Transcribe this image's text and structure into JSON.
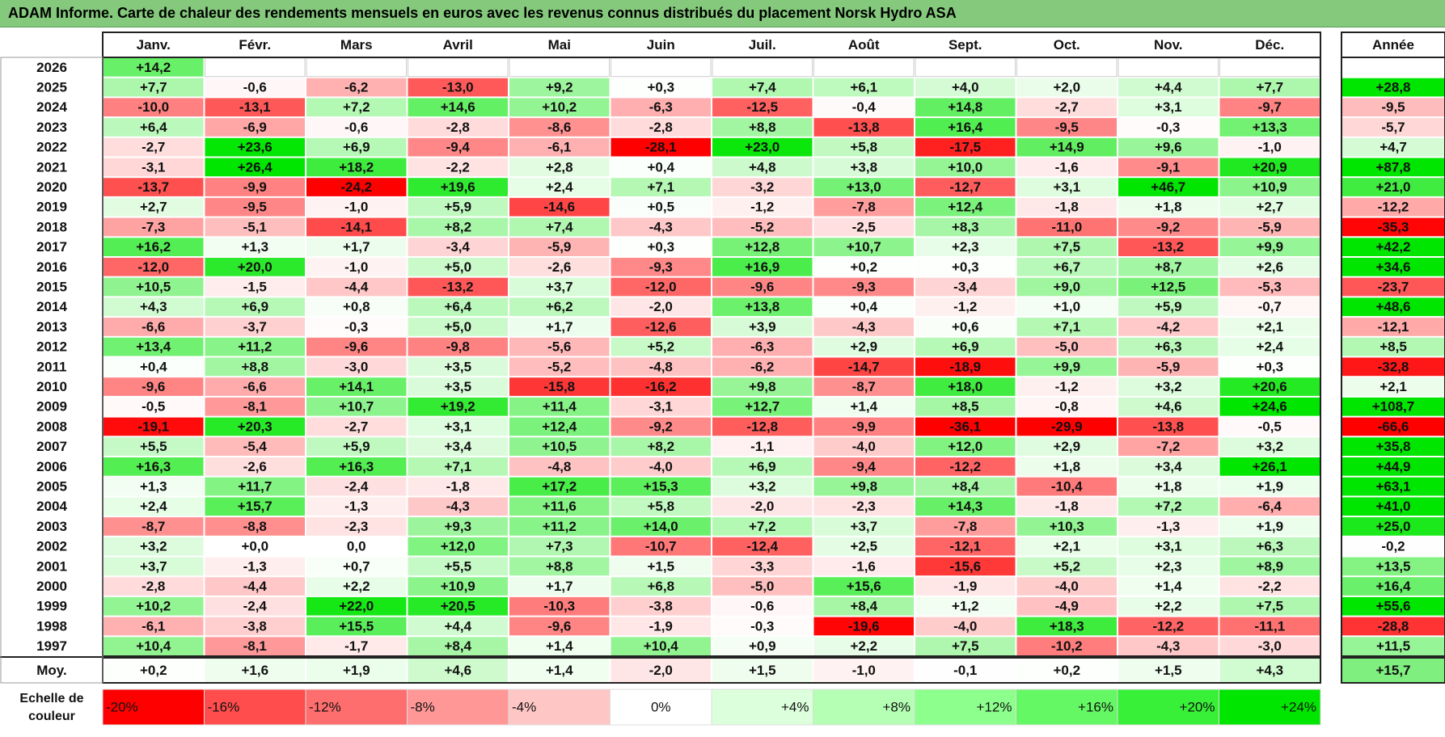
{
  "title": "ADAM Informe. Carte de chaleur des rendements mensuels en euros avec les revenus connus distribués du placement Norsk Hydro ASA",
  "chart_data": {
    "type": "heatmap",
    "columns": [
      "Janv.",
      "Févr.",
      "Mars",
      "Avril",
      "Mai",
      "Juin",
      "Juil.",
      "Août",
      "Sept.",
      "Oct.",
      "Nov.",
      "Déc."
    ],
    "year_column_label": "Année",
    "years": [
      "2026",
      "2025",
      "2024",
      "2023",
      "2022",
      "2021",
      "2020",
      "2019",
      "2018",
      "2017",
      "2016",
      "2015",
      "2014",
      "2013",
      "2012",
      "2011",
      "2010",
      "2009",
      "2008",
      "2007",
      "2006",
      "2005",
      "2004",
      "2003",
      "2002",
      "2001",
      "2000",
      "1999",
      "1998",
      "1997"
    ],
    "rows": [
      [
        "+14,2",
        "",
        "",
        "",
        "",
        "",
        "",
        "",
        "",
        "",
        "",
        ""
      ],
      [
        "+7,7",
        "-0,6",
        "-6,2",
        "-13,0",
        "+9,2",
        "+0,3",
        "+7,4",
        "+6,1",
        "+4,0",
        "+2,0",
        "+4,4",
        "+7,7"
      ],
      [
        "-10,0",
        "-13,1",
        "+7,2",
        "+14,6",
        "+10,2",
        "-6,3",
        "-12,5",
        "-0,4",
        "+14,8",
        "-2,7",
        "+3,1",
        "-9,7"
      ],
      [
        "+6,4",
        "-6,9",
        "-0,6",
        "-2,8",
        "-8,6",
        "-2,8",
        "+8,8",
        "-13,8",
        "+16,4",
        "-9,5",
        "-0,3",
        "+13,3"
      ],
      [
        "-2,7",
        "+23,6",
        "+6,9",
        "-9,4",
        "-6,1",
        "-28,1",
        "+23,0",
        "+5,8",
        "-17,5",
        "+14,9",
        "+9,6",
        "-1,0"
      ],
      [
        "-3,1",
        "+26,4",
        "+18,2",
        "-2,2",
        "+2,8",
        "+0,4",
        "+4,8",
        "+3,8",
        "+10,0",
        "-1,6",
        "-9,1",
        "+20,9"
      ],
      [
        "-13,7",
        "-9,9",
        "-24,2",
        "+19,6",
        "+2,4",
        "+7,1",
        "-3,2",
        "+13,0",
        "-12,7",
        "+3,1",
        "+46,7",
        "+10,9"
      ],
      [
        "+2,7",
        "-9,5",
        "-1,0",
        "+5,9",
        "-14,6",
        "+0,5",
        "-1,2",
        "-7,8",
        "+12,4",
        "-1,8",
        "+1,8",
        "+2,7"
      ],
      [
        "-7,3",
        "-5,1",
        "-14,1",
        "+8,2",
        "+7,4",
        "-4,3",
        "-5,2",
        "-2,5",
        "+8,3",
        "-11,0",
        "-9,2",
        "-5,9"
      ],
      [
        "+16,2",
        "+1,3",
        "+1,7",
        "-3,4",
        "-5,9",
        "+0,3",
        "+12,8",
        "+10,7",
        "+2,3",
        "+7,5",
        "-13,2",
        "+9,9"
      ],
      [
        "-12,0",
        "+20,0",
        "-1,0",
        "+5,0",
        "-2,6",
        "-9,3",
        "+16,9",
        "+0,2",
        "+0,3",
        "+6,7",
        "+8,7",
        "+2,6"
      ],
      [
        "+10,5",
        "-1,5",
        "-4,4",
        "-13,2",
        "+3,7",
        "-12,0",
        "-9,6",
        "-9,3",
        "-3,4",
        "+9,0",
        "+12,5",
        "-5,3"
      ],
      [
        "+4,3",
        "+6,9",
        "+0,8",
        "+6,4",
        "+6,2",
        "-2,0",
        "+13,8",
        "+0,4",
        "-1,2",
        "+1,0",
        "+5,9",
        "-0,7"
      ],
      [
        "-6,6",
        "-3,7",
        "-0,3",
        "+5,0",
        "+1,7",
        "-12,6",
        "+3,9",
        "-4,3",
        "+0,6",
        "+7,1",
        "-4,2",
        "+2,1"
      ],
      [
        "+13,4",
        "+11,2",
        "-9,6",
        "-9,8",
        "-5,6",
        "+5,2",
        "-6,3",
        "+2,9",
        "+6,9",
        "-5,0",
        "+6,3",
        "+2,4"
      ],
      [
        "+0,4",
        "+8,8",
        "-3,0",
        "+3,5",
        "-5,2",
        "-4,8",
        "-6,2",
        "-14,7",
        "-18,9",
        "+9,9",
        "-5,9",
        "+0,3"
      ],
      [
        "-9,6",
        "-6,6",
        "+14,1",
        "+3,5",
        "-15,8",
        "-16,2",
        "+9,8",
        "-8,7",
        "+18,0",
        "-1,2",
        "+3,2",
        "+20,6"
      ],
      [
        "-0,5",
        "-8,1",
        "+10,7",
        "+19,2",
        "+11,4",
        "-3,1",
        "+12,7",
        "+1,4",
        "+8,5",
        "-0,8",
        "+4,6",
        "+24,6"
      ],
      [
        "-19,1",
        "+20,3",
        "-2,7",
        "+3,1",
        "+12,4",
        "-9,2",
        "-12,8",
        "-9,9",
        "-36,1",
        "-29,9",
        "-13,8",
        "-0,5"
      ],
      [
        "+5,5",
        "-5,4",
        "+5,9",
        "+3,4",
        "+10,5",
        "+8,2",
        "-1,1",
        "-4,0",
        "+12,0",
        "+2,9",
        "-7,2",
        "+3,2"
      ],
      [
        "+16,3",
        "-2,6",
        "+16,3",
        "+7,1",
        "-4,8",
        "-4,0",
        "+6,9",
        "-9,4",
        "-12,2",
        "+1,8",
        "+3,4",
        "+26,1"
      ],
      [
        "+1,3",
        "+11,7",
        "-2,4",
        "-1,8",
        "+17,2",
        "+15,3",
        "+3,2",
        "+9,8",
        "+8,4",
        "-10,4",
        "+1,8",
        "+1,9"
      ],
      [
        "+2,4",
        "+15,7",
        "-1,3",
        "-4,3",
        "+11,6",
        "+5,8",
        "-2,0",
        "-2,3",
        "+14,3",
        "-1,8",
        "+7,2",
        "-6,4"
      ],
      [
        "-8,7",
        "-8,8",
        "-2,3",
        "+9,3",
        "+11,2",
        "+14,0",
        "+7,2",
        "+3,7",
        "-7,8",
        "+10,3",
        "-1,3",
        "+1,9"
      ],
      [
        "+3,2",
        "+0,0",
        "0,0",
        "+12,0",
        "+7,3",
        "-10,7",
        "-12,4",
        "+2,5",
        "-12,1",
        "+2,1",
        "+3,1",
        "+6,3"
      ],
      [
        "+3,7",
        "-1,3",
        "+0,7",
        "+5,5",
        "+8,8",
        "+1,5",
        "-3,3",
        "-1,6",
        "-15,6",
        "+5,2",
        "+2,3",
        "+8,9"
      ],
      [
        "-2,8",
        "-4,4",
        "+2,2",
        "+10,9",
        "+1,7",
        "+6,8",
        "-5,0",
        "+15,6",
        "-1,9",
        "-4,0",
        "+1,4",
        "-2,2"
      ],
      [
        "+10,2",
        "-2,4",
        "+22,0",
        "+20,5",
        "-10,3",
        "-3,8",
        "-0,6",
        "+8,4",
        "+1,2",
        "-4,9",
        "+2,2",
        "+7,5"
      ],
      [
        "-6,1",
        "-3,8",
        "+15,5",
        "+4,4",
        "-9,6",
        "-1,9",
        "-0,3",
        "-19,6",
        "-4,0",
        "+18,3",
        "-12,2",
        "-11,1"
      ],
      [
        "+10,4",
        "-8,1",
        "-1,7",
        "+8,4",
        "+1,4",
        "+10,4",
        "+0,9",
        "+2,2",
        "+7,5",
        "-10,2",
        "-4,3",
        "-3,0"
      ]
    ],
    "year_totals": [
      "",
      "+28,8",
      "-9,5",
      "-5,7",
      "+4,7",
      "+87,8",
      "+21,0",
      "-12,2",
      "-35,3",
      "+42,2",
      "+34,6",
      "-23,7",
      "+48,6",
      "-12,1",
      "+8,5",
      "-32,8",
      "+2,1",
      "+108,7",
      "-66,6",
      "+35,8",
      "+44,9",
      "+63,1",
      "+41,0",
      "+25,0",
      "-0,2",
      "+13,5",
      "+16,4",
      "+55,6",
      "-28,8",
      "+11,5"
    ],
    "average_label": "Moy.",
    "averages": [
      "+0,2",
      "+1,6",
      "+1,9",
      "+4,6",
      "+1,4",
      "-2,0",
      "+1,5",
      "-1,0",
      "-0,1",
      "+0,2",
      "+1,5",
      "+4,3"
    ],
    "average_total": "+15,7",
    "scale_label_line1": "Echelle de",
    "scale_label_line2": "couleur",
    "scale_labels": [
      "-20%",
      "-16%",
      "-12%",
      "-8%",
      "-4%",
      "0%",
      "+4%",
      "+8%",
      "+12%",
      "+16%",
      "+20%",
      "+24%"
    ],
    "scale_colors": [
      "#ff0000",
      "#ff4c4c",
      "#ff6e6e",
      "#ff9797",
      "#ffc6c6",
      "#ffffff",
      "#dcffdc",
      "#b4ffb4",
      "#8cff8c",
      "#64f864",
      "#38f038",
      "#00e600"
    ]
  }
}
